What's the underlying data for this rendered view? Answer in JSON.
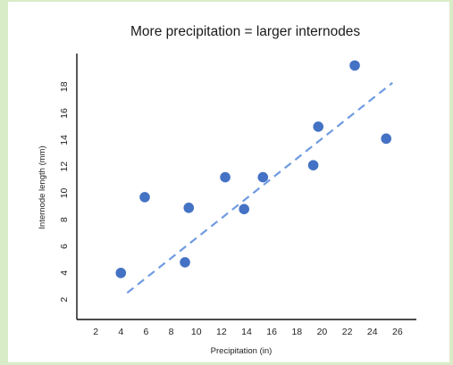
{
  "chart_data": {
    "type": "scatter",
    "title": "More precipitation = larger internodes",
    "xlabel": "Precipitation (in)",
    "ylabel": "Internode length (mm)",
    "xticks": [
      2,
      4,
      6,
      8,
      10,
      12,
      14,
      16,
      18,
      20,
      22,
      24,
      26
    ],
    "yticks": [
      2,
      4,
      6,
      8,
      10,
      12,
      14,
      16,
      18
    ],
    "xlim": [
      0.5,
      27.5
    ],
    "ylim": [
      0.5,
      20.5
    ],
    "grid": false,
    "series": [
      {
        "points": [
          {
            "x": 4,
            "y": 4
          },
          {
            "x": 5.9,
            "y": 9.7
          },
          {
            "x": 9.1,
            "y": 4.8
          },
          {
            "x": 9.4,
            "y": 8.9
          },
          {
            "x": 12.3,
            "y": 11.2
          },
          {
            "x": 13.8,
            "y": 8.8
          },
          {
            "x": 15.3,
            "y": 11.2
          },
          {
            "x": 19.3,
            "y": 12.1
          },
          {
            "x": 19.7,
            "y": 15.0
          },
          {
            "x": 22.6,
            "y": 19.6
          },
          {
            "x": 25.1,
            "y": 14.1
          }
        ],
        "color": "#4472c4"
      }
    ],
    "trendline": {
      "style": "dashed",
      "color": "#6f9be0",
      "from": {
        "x": 4.5,
        "y": 2.5
      },
      "to": {
        "x": 25.6,
        "y": 18.3
      }
    }
  }
}
